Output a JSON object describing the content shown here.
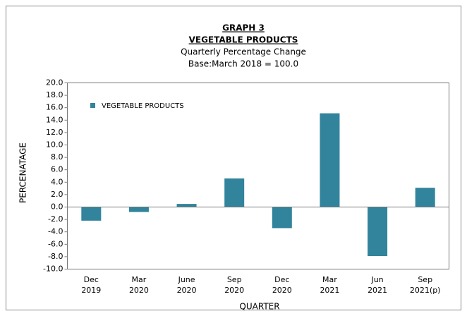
{
  "chart_data": {
    "type": "bar",
    "title": "GRAPH 3",
    "subtitle": "VEGETABLE PRODUCTS",
    "notes": [
      "Quarterly Percentage Change",
      "Base:March 2018 = 100.0"
    ],
    "x_label": "QUARTER",
    "y_label": "PERCENATAGE",
    "categories": [
      [
        "Dec",
        "2019"
      ],
      [
        "Mar",
        "2020"
      ],
      [
        "June",
        "2020"
      ],
      [
        "Sep",
        "2020"
      ],
      [
        "Dec",
        "2020"
      ],
      [
        "Mar",
        "2021"
      ],
      [
        "Jun",
        "2021"
      ],
      [
        "Sep",
        "2021(p)"
      ]
    ],
    "series": [
      {
        "name": "VEGETABLE PRODUCTS",
        "color": "#31849b",
        "values": [
          -2.2,
          -0.8,
          0.5,
          4.6,
          -3.4,
          15.1,
          -7.9,
          3.1
        ]
      }
    ],
    "ylim": [
      -10,
      20
    ],
    "yticks": [
      {
        "value": -10,
        "label": "-10.0"
      },
      {
        "value": -8,
        "label": "-8.0"
      },
      {
        "value": -6,
        "label": "-6.0"
      },
      {
        "value": -4,
        "label": "-4.0"
      },
      {
        "value": -2,
        "label": "-2.0"
      },
      {
        "value": 0,
        "label": "0.0"
      },
      {
        "value": 2,
        "label": "2.0"
      },
      {
        "value": 4,
        "label": "4.0"
      },
      {
        "value": 6,
        "label": "6.0"
      },
      {
        "value": 8,
        "label": "8.0"
      },
      {
        "value": 10,
        "label": "10.0"
      },
      {
        "value": 12,
        "label": "12.0"
      },
      {
        "value": 14,
        "label": "14.0"
      },
      {
        "value": 16,
        "label": "16.0"
      },
      {
        "value": 18,
        "label": "18.0"
      },
      {
        "value": 20,
        "label": "20.0"
      }
    ],
    "legend": "top-left"
  }
}
